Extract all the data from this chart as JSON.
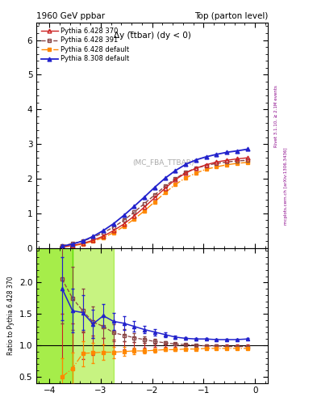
{
  "title_left": "1960 GeV ppbar",
  "title_right": "Top (parton level)",
  "ylabel_ratio": "Ratio to Pythia 6.428 370",
  "annotation_main": "Δy (t̅̅tbar) (dy < 0)",
  "annotation_watermark": "(MC_FBA_TTBAR)",
  "right_label": "Rivet 3.1.10, ≥ 2.1M events",
  "right_label2": "mcplots.cern.ch [arXiv:1306.3436]",
  "xlim": [
    -4.25,
    0.25
  ],
  "ylim_main": [
    0,
    6.5
  ],
  "ylim_ratio": [
    0.4,
    2.55
  ],
  "x_main": [
    -3.75,
    -3.55,
    -3.35,
    -3.15,
    -2.95,
    -2.75,
    -2.55,
    -2.35,
    -2.15,
    -1.95,
    -1.75,
    -1.55,
    -1.35,
    -1.15,
    -0.95,
    -0.75,
    -0.55,
    -0.35,
    -0.15
  ],
  "y_p6370": [
    0.03,
    0.07,
    0.13,
    0.22,
    0.34,
    0.5,
    0.69,
    0.92,
    1.18,
    1.45,
    1.72,
    1.97,
    2.16,
    2.3,
    2.4,
    2.48,
    2.53,
    2.57,
    2.6
  ],
  "y_p6391": [
    0.06,
    0.12,
    0.2,
    0.3,
    0.44,
    0.6,
    0.8,
    1.03,
    1.28,
    1.53,
    1.78,
    2.0,
    2.18,
    2.3,
    2.38,
    2.44,
    2.48,
    2.51,
    2.53
  ],
  "y_p6def": [
    0.03,
    0.06,
    0.11,
    0.19,
    0.3,
    0.44,
    0.62,
    0.83,
    1.07,
    1.33,
    1.59,
    1.83,
    2.02,
    2.16,
    2.27,
    2.34,
    2.4,
    2.44,
    2.47
  ],
  "y_p8def": [
    0.05,
    0.11,
    0.2,
    0.33,
    0.5,
    0.7,
    0.94,
    1.2,
    1.47,
    1.75,
    2.01,
    2.23,
    2.41,
    2.54,
    2.63,
    2.7,
    2.76,
    2.8,
    2.85
  ],
  "x_ratio": [
    -3.75,
    -3.55,
    -3.35,
    -3.15,
    -2.95,
    -2.75,
    -2.55,
    -2.35,
    -2.15,
    -1.95,
    -1.75,
    -1.55,
    -1.35,
    -1.15,
    -0.95,
    -0.75,
    -0.55,
    -0.35,
    -0.15
  ],
  "ratio_p6391": [
    2.05,
    1.75,
    1.55,
    1.37,
    1.3,
    1.2,
    1.16,
    1.12,
    1.09,
    1.06,
    1.04,
    1.02,
    1.01,
    1.0,
    0.99,
    0.99,
    0.98,
    0.98,
    0.98
  ],
  "ratio_p6def": [
    0.5,
    0.63,
    0.87,
    0.88,
    0.89,
    0.89,
    0.9,
    0.91,
    0.91,
    0.92,
    0.93,
    0.93,
    0.94,
    0.94,
    0.95,
    0.95,
    0.95,
    0.95,
    0.95
  ],
  "ratio_p8def": [
    1.9,
    1.55,
    1.52,
    1.34,
    1.47,
    1.38,
    1.35,
    1.3,
    1.25,
    1.21,
    1.17,
    1.13,
    1.11,
    1.1,
    1.1,
    1.09,
    1.09,
    1.09,
    1.1
  ],
  "ratio_ref_y": [
    1.0,
    1.0,
    1.0,
    1.0,
    1.0,
    1.0,
    1.0,
    1.0,
    1.0,
    1.0,
    1.0,
    1.0,
    1.0,
    1.0,
    1.0,
    1.0,
    1.0,
    1.0,
    1.0
  ],
  "ratio_ref_e": [
    0.5,
    0.35,
    0.22,
    0.16,
    0.12,
    0.09,
    0.07,
    0.05,
    0.04,
    0.03,
    0.02,
    0.02,
    0.01,
    0.01,
    0.01,
    0.01,
    0.01,
    0.01,
    0.01
  ],
  "ratio_err_p6391": [
    0.7,
    0.5,
    0.35,
    0.25,
    0.18,
    0.13,
    0.1,
    0.07,
    0.05,
    0.04,
    0.03,
    0.02,
    0.02,
    0.01,
    0.01,
    0.01,
    0.01,
    0.01,
    0.01
  ],
  "ratio_err_p6def": [
    0.3,
    0.25,
    0.2,
    0.16,
    0.12,
    0.09,
    0.07,
    0.05,
    0.04,
    0.03,
    0.02,
    0.02,
    0.01,
    0.01,
    0.01,
    0.01,
    0.01,
    0.01,
    0.01
  ],
  "ratio_err_p8def": [
    0.5,
    0.35,
    0.28,
    0.22,
    0.18,
    0.14,
    0.11,
    0.08,
    0.06,
    0.05,
    0.04,
    0.03,
    0.02,
    0.02,
    0.01,
    0.01,
    0.01,
    0.01,
    0.01
  ],
  "color_p6370": "#cc2222",
  "color_p6391": "#884444",
  "color_p6def": "#ff8800",
  "color_p8def": "#2222cc",
  "band_yellow_x1": -4.25,
  "band_yellow_x2": -3.55,
  "band_green_x1": -4.25,
  "band_green_x2": -3.55,
  "band_green_x3": -3.55,
  "band_green_x4": -2.75,
  "yticks_main": [
    0,
    1,
    2,
    3,
    4,
    5,
    6
  ],
  "yticks_ratio": [
    0.5,
    1.0,
    1.5,
    2.0
  ],
  "xticks": [
    -4,
    -3,
    -2,
    -1,
    0
  ]
}
